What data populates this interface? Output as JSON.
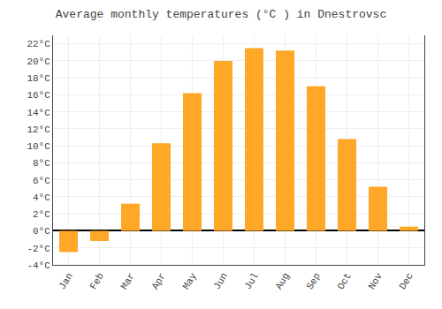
{
  "chart_data": {
    "type": "bar",
    "title": "Average monthly temperatures (°C ) in Dnestrovsc",
    "categories": [
      "Jan",
      "Feb",
      "Mar",
      "Apr",
      "May",
      "Jun",
      "Jul",
      "Aug",
      "Sep",
      "Oct",
      "Nov",
      "Dec"
    ],
    "values": [
      -2.5,
      -1.2,
      3.2,
      10.3,
      16.2,
      20.0,
      21.5,
      21.2,
      17.0,
      10.8,
      5.2,
      0.5
    ],
    "color": "#FFA726",
    "ylim": [
      -4,
      23
    ],
    "yticks": [
      {
        "value": -4,
        "label": "-4°C"
      },
      {
        "value": -2,
        "label": "-2°C"
      },
      {
        "value": 0,
        "label": "0°C"
      },
      {
        "value": 2,
        "label": "2°C"
      },
      {
        "value": 4,
        "label": "4°C"
      },
      {
        "value": 6,
        "label": "6°C"
      },
      {
        "value": 8,
        "label": "8°C"
      },
      {
        "value": 10,
        "label": "10°C"
      },
      {
        "value": 12,
        "label": "12°C"
      },
      {
        "value": 14,
        "label": "14°C"
      },
      {
        "value": 16,
        "label": "16°C"
      },
      {
        "value": 18,
        "label": "18°C"
      },
      {
        "value": 20,
        "label": "20°C"
      },
      {
        "value": 22,
        "label": "22°C"
      }
    ],
    "grid": true
  }
}
